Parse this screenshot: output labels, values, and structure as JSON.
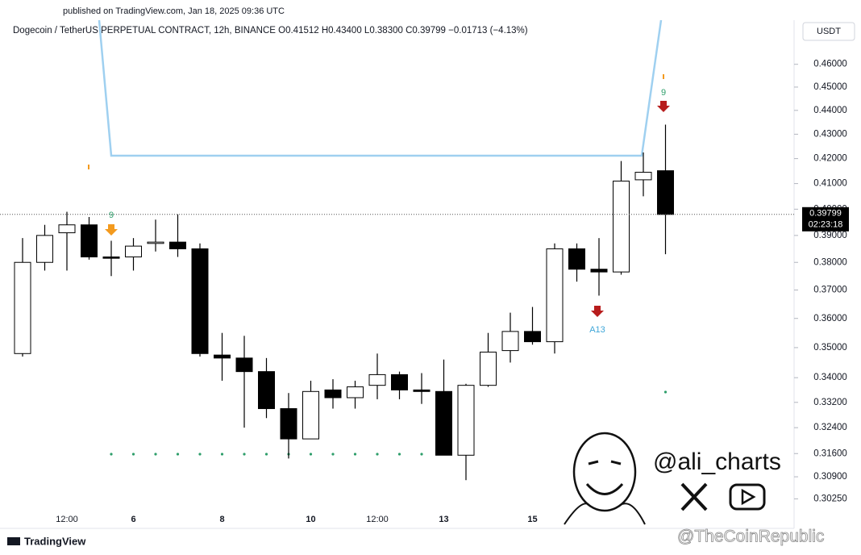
{
  "chart_data": {
    "type": "candlestick",
    "subtitle": "published on TradingView.com, Jan 18, 2025 09:36 UTC",
    "title": "Dogecoin / TetherUS PERPETUAL CONTRACT, 12h, BINANCE  O0.41512 H0.43400 L0.38300 C0.39799 −0.01713 (−4.13%)",
    "y_axis_label": "USDT",
    "log_scale": true,
    "up_color": "#ffffff",
    "down_color": "#000000",
    "categories": [
      null,
      null,
      "12:00",
      null,
      null,
      "6",
      null,
      null,
      null,
      "8",
      null,
      null,
      null,
      "10",
      null,
      null,
      "12:00",
      null,
      null,
      "13",
      null,
      null,
      null,
      "15",
      null,
      null,
      null,
      null,
      null,
      null
    ],
    "open": [
      0.348,
      0.38,
      0.391,
      0.394,
      0.382,
      0.382,
      0.387,
      0.3875,
      0.385,
      0.3475,
      0.3465,
      0.342,
      0.33,
      0.3205,
      0.336,
      0.3335,
      0.3375,
      0.341,
      0.336,
      0.3355,
      0.3155,
      0.3375,
      0.349,
      0.3555,
      0.352,
      0.385,
      0.3775,
      0.3765,
      0.4115,
      0.41512
    ],
    "high": [
      0.389,
      0.394,
      0.399,
      0.397,
      0.388,
      0.389,
      0.396,
      0.398,
      0.387,
      0.355,
      0.354,
      0.3465,
      0.335,
      0.339,
      0.3395,
      0.339,
      0.348,
      0.342,
      0.3415,
      0.346,
      0.338,
      0.355,
      0.362,
      0.364,
      0.387,
      0.387,
      0.389,
      0.419,
      0.4225,
      0.434
    ],
    "low": [
      0.347,
      0.377,
      0.377,
      0.381,
      0.375,
      0.377,
      0.384,
      0.382,
      0.347,
      0.339,
      0.324,
      0.327,
      0.3145,
      0.3205,
      0.33,
      0.33,
      0.333,
      0.333,
      0.3315,
      0.3155,
      0.308,
      0.337,
      0.345,
      0.351,
      0.348,
      0.373,
      0.368,
      0.3755,
      0.405,
      0.383
    ],
    "close": [
      0.38,
      0.39,
      0.394,
      0.382,
      0.3815,
      0.386,
      0.3875,
      0.385,
      0.348,
      0.3465,
      0.342,
      0.33,
      0.3205,
      0.3355,
      0.3335,
      0.337,
      0.341,
      0.336,
      0.3355,
      0.3155,
      0.3375,
      0.3485,
      0.3555,
      0.352,
      0.385,
      0.3775,
      0.3765,
      0.411,
      0.4145,
      0.39799
    ],
    "ylim": [
      0.294,
      0.48
    ],
    "yticks": [
      {
        "value": 0.46,
        "label": "0.46000"
      },
      {
        "value": 0.45,
        "label": "0.45000"
      },
      {
        "value": 0.44,
        "label": "0.44000"
      },
      {
        "value": 0.43,
        "label": "0.43000"
      },
      {
        "value": 0.42,
        "label": "0.42000"
      },
      {
        "value": 0.41,
        "label": "0.41000"
      },
      {
        "value": 0.4,
        "label": "0.40000"
      },
      {
        "value": 0.39,
        "label": "0.39000"
      },
      {
        "value": 0.38,
        "label": "0.38000"
      },
      {
        "value": 0.37,
        "label": "0.37000"
      },
      {
        "value": 0.36,
        "label": "0.36000"
      },
      {
        "value": 0.35,
        "label": "0.35000"
      },
      {
        "value": 0.34,
        "label": "0.34000"
      },
      {
        "value": 0.332,
        "label": "0.33200"
      },
      {
        "value": 0.324,
        "label": "0.32400"
      },
      {
        "value": 0.316,
        "label": "0.31600"
      },
      {
        "value": 0.309,
        "label": "0.30900"
      },
      {
        "value": 0.3025,
        "label": "0.30250"
      }
    ],
    "last_price": 0.39799,
    "countdown": "02:23:18",
    "annotations": [
      "9",
      "9",
      "A13"
    ],
    "watermarks": [
      "@ali_charts",
      "@TheCoinRepublic"
    ],
    "brand": "TradingView"
  }
}
